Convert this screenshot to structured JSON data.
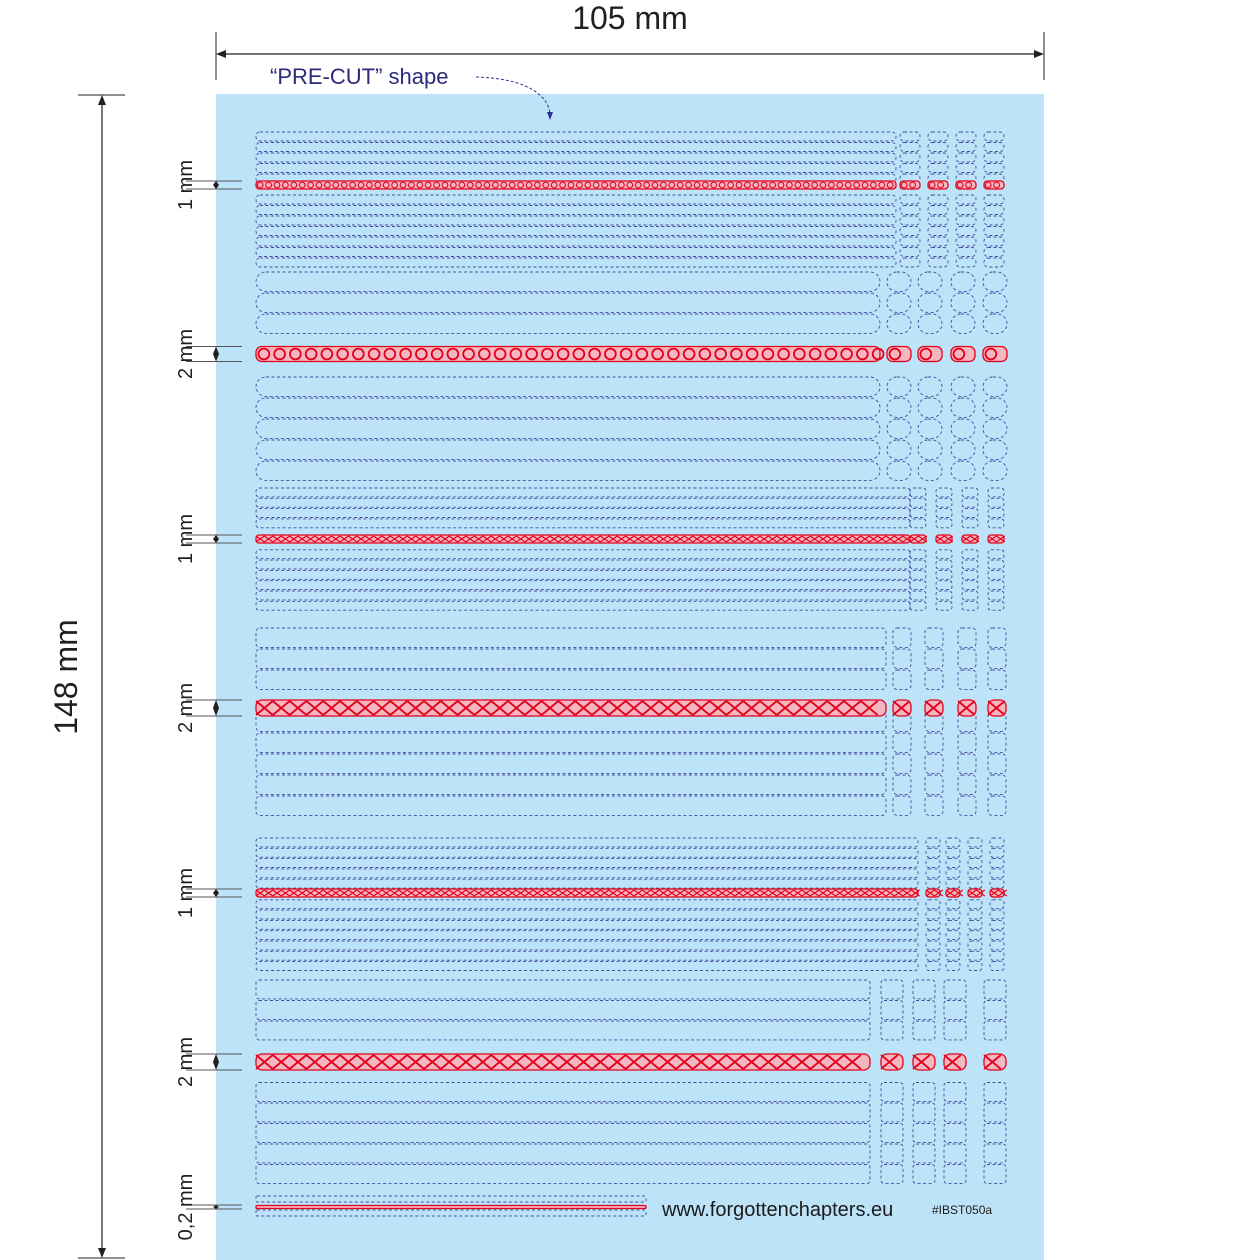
{
  "dimensions": {
    "width_label": "105 mm",
    "height_label": "148 mm"
  },
  "callout": {
    "precut_label": "“PRE-CUT” shape"
  },
  "footer": {
    "website": "www.forgottenchapters.eu",
    "product_code": "#IBST050a"
  },
  "colors": {
    "sheet_background": "#bde3f8",
    "cut_line": "#2e3192",
    "border_pattern": "#e3001b",
    "dimension_line": "#231f20"
  },
  "sections": [
    {
      "id": "band-1",
      "width_label": "1 mm",
      "pattern": "knot-chain",
      "short_rows_above": 3,
      "rows_below": 6,
      "tall_rows_below": 5,
      "tiles": 4
    },
    {
      "id": "band-2",
      "width_label": "2 mm",
      "pattern": "spiral-chain",
      "rows_above": 3,
      "rows_below": 6,
      "tiles": 4
    },
    {
      "id": "band-3",
      "width_label": "1 mm",
      "pattern": "crosshatch-knot",
      "rows_above": 5,
      "rows_below": 6,
      "tiles": 4
    },
    {
      "id": "band-4",
      "width_label": "2 mm",
      "pattern": "braid",
      "rows_above": 4,
      "rows_below": 6,
      "tiles": 4
    },
    {
      "id": "band-5",
      "width_label": "1 mm",
      "pattern": "key-knot",
      "rows_above": 5,
      "rows_below": 6,
      "tiles": 4
    },
    {
      "id": "band-6",
      "width_label": "2 mm",
      "pattern": "double-knot",
      "rows_above": 4,
      "rows_below": 6,
      "tiles": 4
    },
    {
      "id": "band-7",
      "width_label": "0,2 mm",
      "pattern": "thin-line",
      "rows_above": 1,
      "rows_below": 1,
      "tiles": 0
    }
  ]
}
